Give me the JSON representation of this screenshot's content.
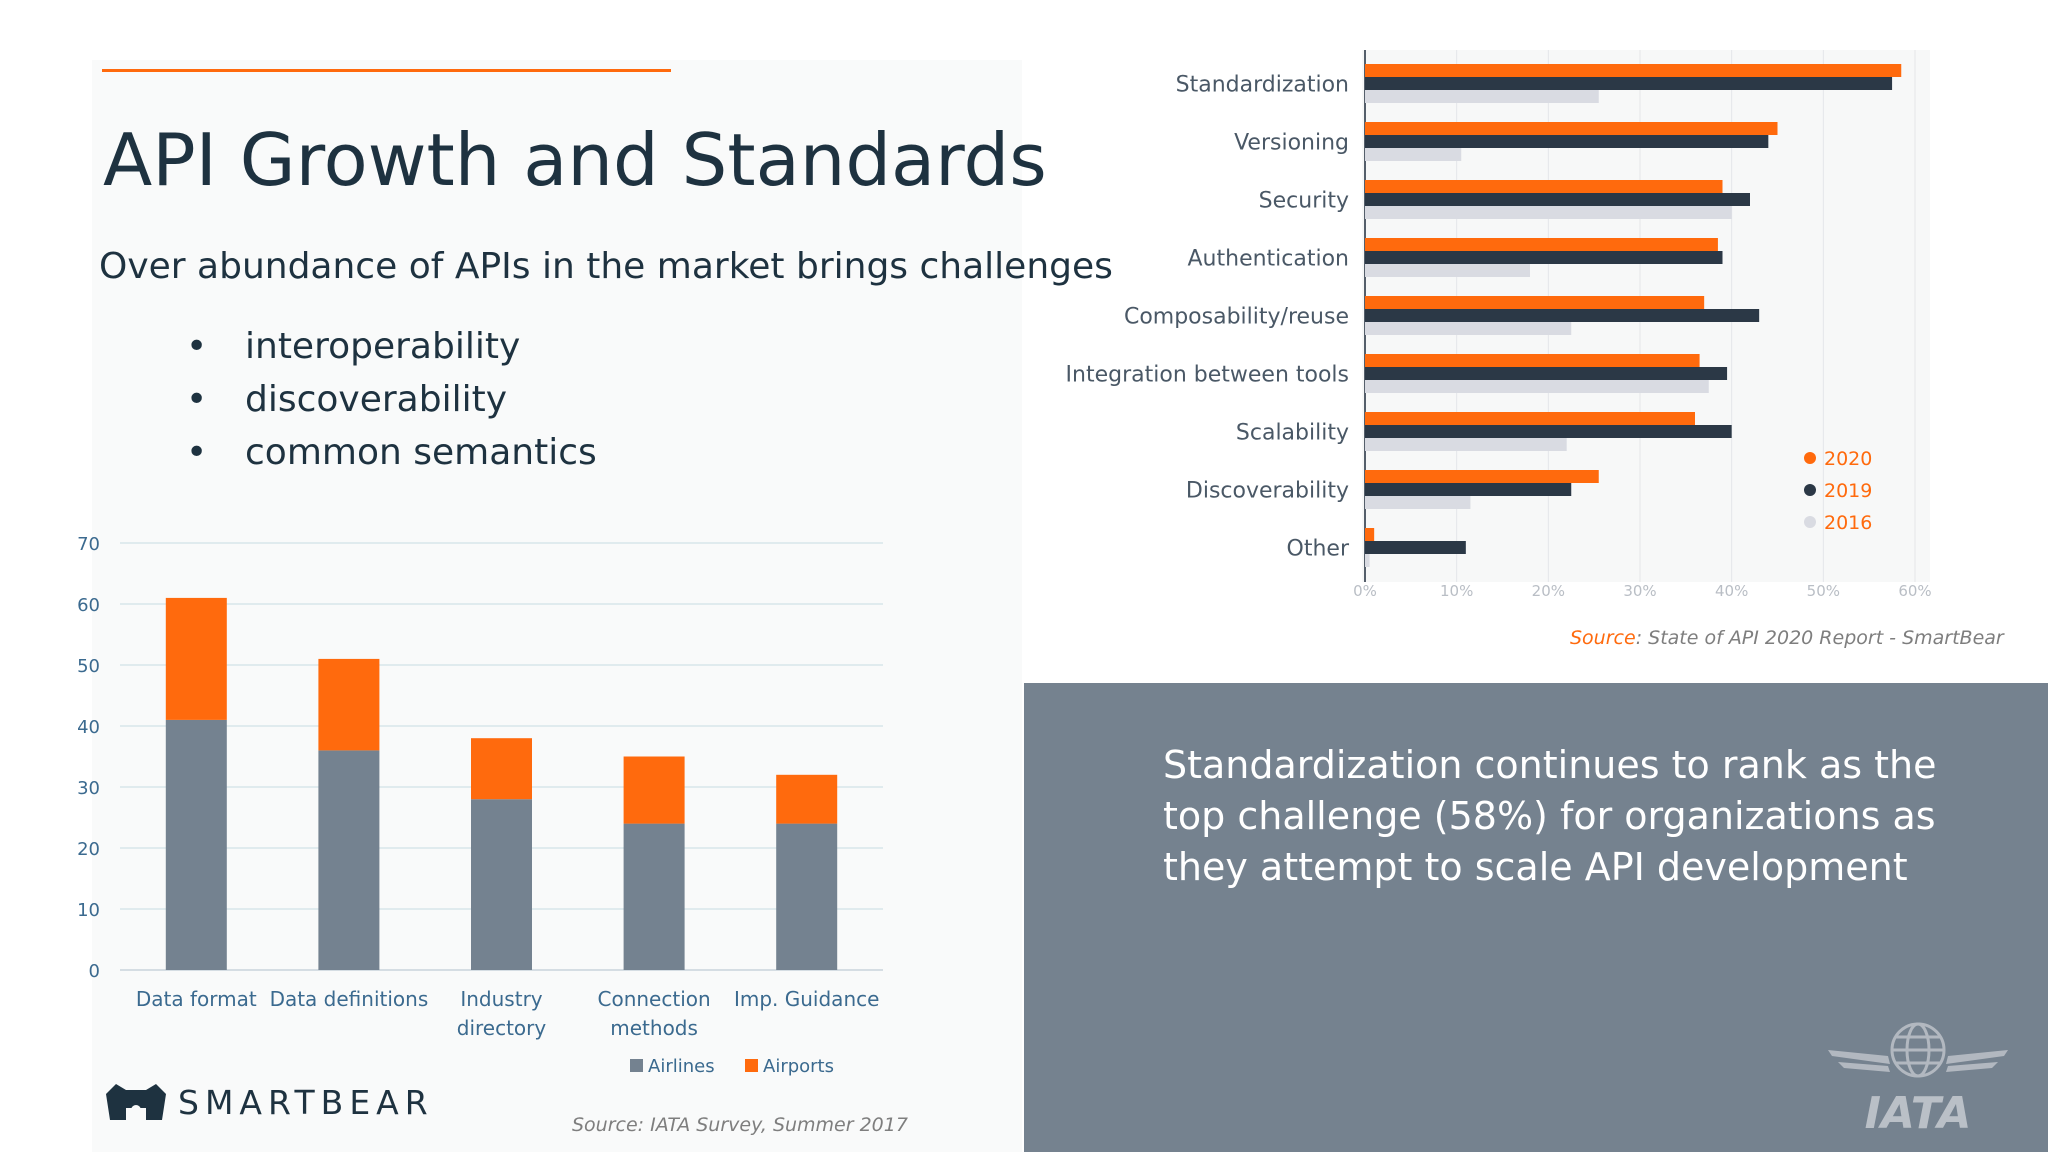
{
  "slide": {
    "title": "API Growth and Standards",
    "subtitle": "Over abundance of APIs in the market brings challenges",
    "bullets": [
      "interoperability",
      "discoverability",
      "common semantics"
    ],
    "bullet_glyph": "•",
    "callout": "Standardization continues to rank as the top challenge (58%) for organizations as they attempt to scale API development",
    "source_bar_prefix": "Source: ",
    "source_bar": "IATA Survey, Summer 2017",
    "source_hbar_prefix": "Source",
    "source_hbar": ": State of API 2020 Report - SmartBear",
    "logo_text": "SMARTBEAR",
    "iata_text": "IATA",
    "colors": {
      "accent": "#ff6a0d",
      "navy": "#2b3846",
      "slate": "#748290",
      "panel": "#75828f",
      "light": "#d9dbe2"
    }
  },
  "chart_data": [
    {
      "type": "bar",
      "stacked": true,
      "categories": [
        [
          "Data format"
        ],
        [
          "Data definitions"
        ],
        [
          "Industry",
          "directory"
        ],
        [
          "Connection",
          "methods"
        ],
        [
          "Imp. Guidance"
        ]
      ],
      "series": [
        {
          "name": "Airlines",
          "color": "#748290",
          "values": [
            41,
            36,
            28,
            24,
            24
          ]
        },
        {
          "name": "Airports",
          "color": "#ff6a0d",
          "values": [
            20,
            15,
            10,
            11,
            8
          ]
        }
      ],
      "ylim": [
        0,
        70
      ],
      "yticks": [
        0,
        10,
        20,
        30,
        40,
        50,
        60,
        70
      ],
      "grid": true,
      "legend": "bottom"
    },
    {
      "type": "bar",
      "orientation": "horizontal",
      "categories": [
        "Standardization",
        "Versioning",
        "Security",
        "Authentication",
        "Composability/reuse",
        "Integration between tools",
        "Scalability",
        "Discoverability",
        "Other"
      ],
      "series": [
        {
          "name": "2020",
          "color": "#ff6a0d",
          "values": [
            58.5,
            45,
            39,
            38.5,
            37,
            36.5,
            36,
            25.5,
            1
          ]
        },
        {
          "name": "2019",
          "color": "#2b3846",
          "values": [
            57.5,
            44,
            42,
            39,
            43,
            39.5,
            40,
            22.5,
            11
          ]
        },
        {
          "name": "2016",
          "color": "#d9dbe2",
          "values": [
            25.5,
            10.5,
            40,
            18,
            22.5,
            37.5,
            22,
            11.5,
            0.5
          ]
        }
      ],
      "xlim": [
        0,
        60
      ],
      "xticks": [
        "0%",
        "10%",
        "20%",
        "30%",
        "40%",
        "50%",
        "60%"
      ],
      "legend": "right"
    }
  ]
}
